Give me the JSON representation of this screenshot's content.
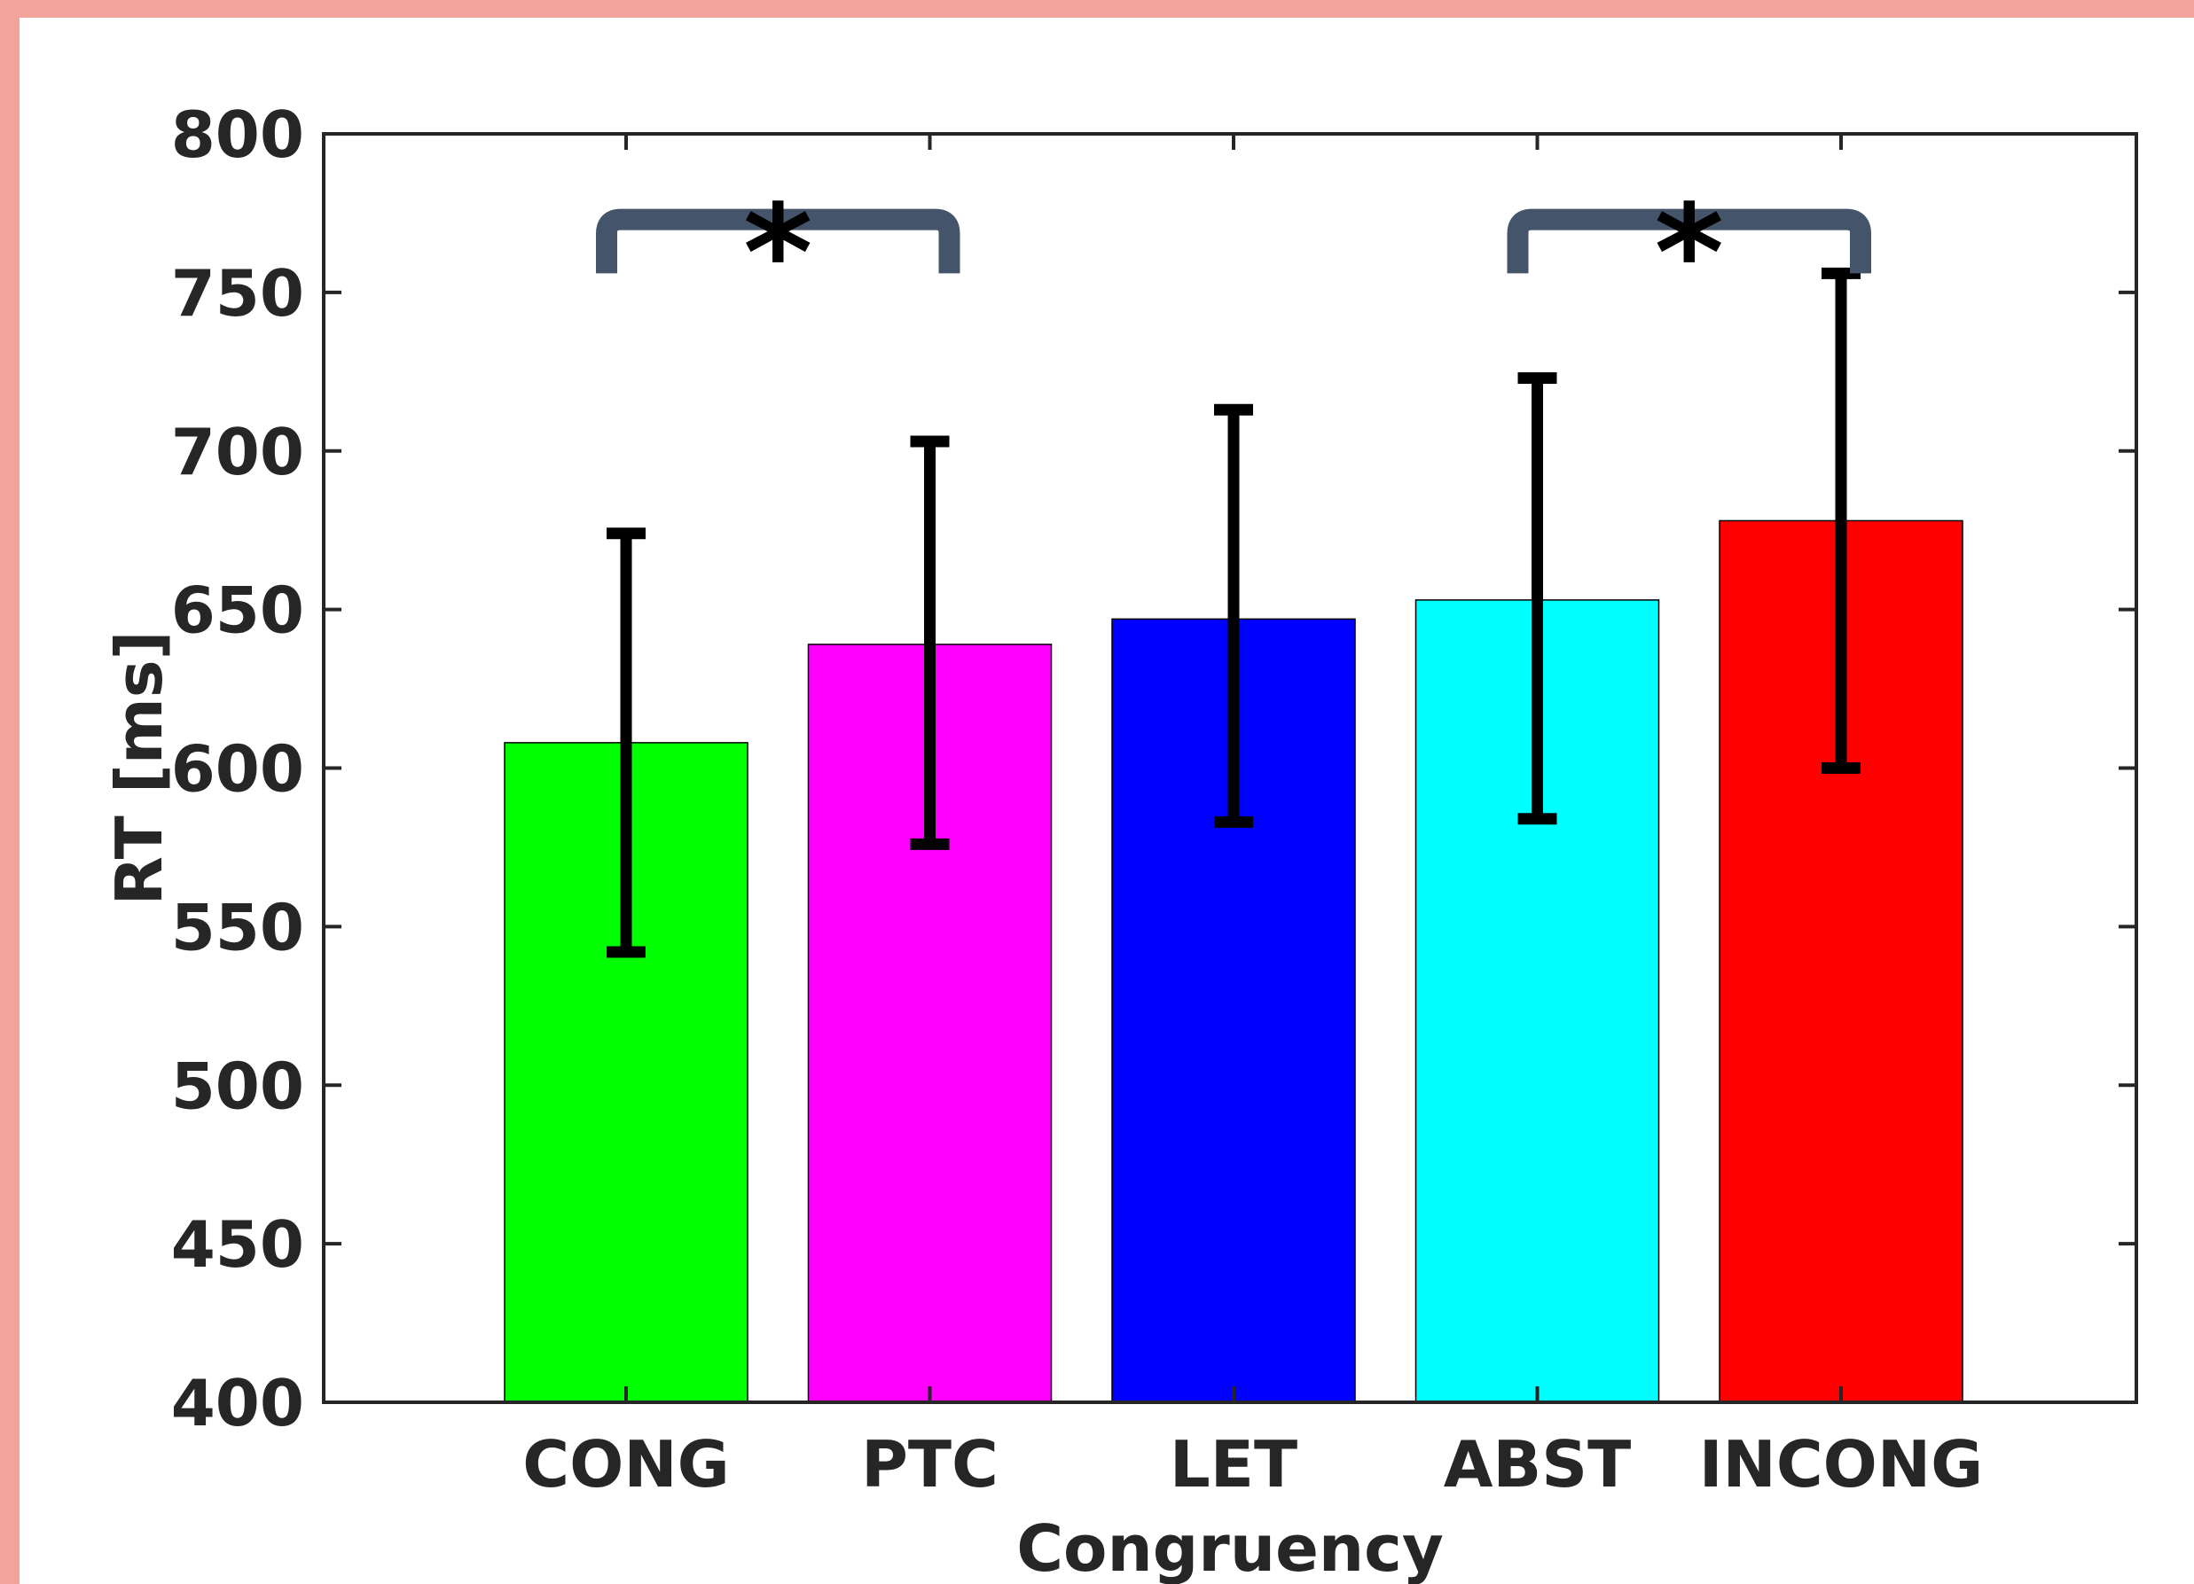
{
  "chart_data": {
    "type": "bar",
    "categories": [
      "CONG",
      "PTC",
      "LET",
      "ABST",
      "INCONG"
    ],
    "values": [
      608,
      639,
      647,
      653,
      678
    ],
    "error_low": [
      542,
      576,
      583,
      584,
      600
    ],
    "error_high": [
      674,
      703,
      713,
      723,
      756
    ],
    "colors": [
      "#00ff00",
      "#ff00ff",
      "#0000ff",
      "#00ffff",
      "#ff0000"
    ],
    "xlabel": "Congruency",
    "ylabel": "RT [ms]",
    "ylim": [
      400,
      800
    ],
    "yticks": [
      400,
      450,
      500,
      550,
      600,
      650,
      700,
      750,
      800
    ],
    "grid": false,
    "significance": [
      {
        "from": "CONG",
        "to": "PTC",
        "label": "*",
        "y": 756,
        "top": 773
      },
      {
        "from": "ABST",
        "to": "INCONG",
        "label": "*",
        "y": 756,
        "top": 773
      }
    ],
    "axis_color": "#262626",
    "bracket_color": "#44546a"
  }
}
